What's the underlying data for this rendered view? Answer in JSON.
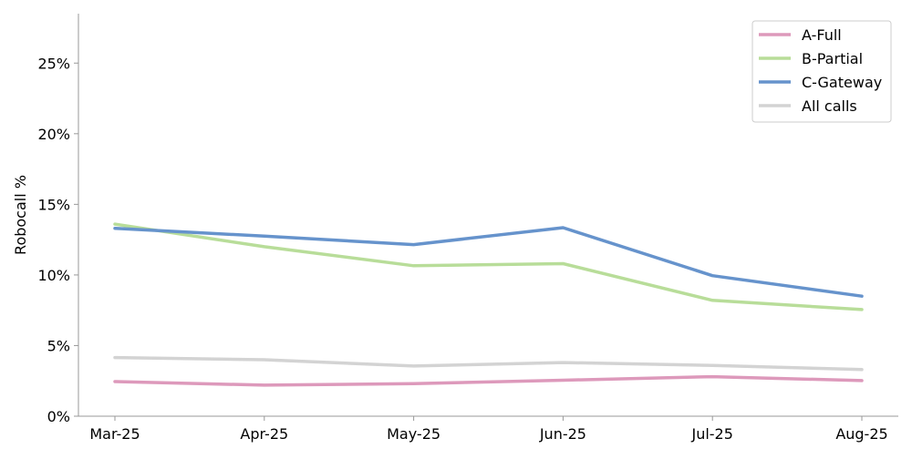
{
  "chart_data": {
    "type": "line",
    "x": [
      "Mar-25",
      "Apr-25",
      "May-25",
      "Jun-25",
      "Jul-25",
      "Aug-25"
    ],
    "ylabel": "Robocall %",
    "xlabel": "",
    "ylim": [
      0,
      0.285
    ],
    "yticks": [
      0,
      0.05,
      0.1,
      0.15,
      0.2,
      0.25
    ],
    "ytick_labels": [
      "0%",
      "5%",
      "10%",
      "15%",
      "20%",
      "25%"
    ],
    "grid": false,
    "legend_position": "top-right",
    "series": [
      {
        "name": "A-Full",
        "color": "#dd99bb",
        "values": [
          0.0245,
          0.022,
          0.023,
          0.0255,
          0.028,
          0.0252
        ]
      },
      {
        "name": "B-Partial",
        "color": "#b8dd99",
        "values": [
          0.136,
          0.12,
          0.1065,
          0.108,
          0.082,
          0.0755
        ]
      },
      {
        "name": "C-Gateway",
        "color": "#6693cc",
        "values": [
          0.133,
          0.1275,
          0.1215,
          0.1335,
          0.0995,
          0.085
        ]
      },
      {
        "name": "All calls",
        "color": "#d3d3d3",
        "values": [
          0.0415,
          0.04,
          0.0355,
          0.038,
          0.036,
          0.033
        ]
      }
    ]
  }
}
